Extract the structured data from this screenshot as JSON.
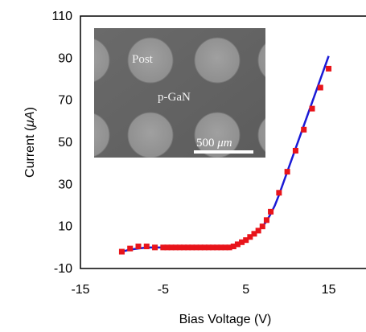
{
  "chart_data": {
    "type": "scatter",
    "xlabel": "Bias Voltage (V)",
    "ylabel": "Current (μA)",
    "ylabel_parts": {
      "prefix": "Current (",
      "mu": "μ",
      "unit": "A",
      "suffix": ")"
    },
    "xlim": [
      -15,
      20
    ],
    "ylim": [
      -10,
      110
    ],
    "x_ticks": [
      "-15",
      "-5",
      "5",
      "15"
    ],
    "x_tick_values": [
      -15,
      -5,
      5,
      15
    ],
    "y_ticks": [
      "110",
      "90",
      "70",
      "50",
      "30",
      "10",
      "-10"
    ],
    "y_tick_values": [
      110,
      90,
      70,
      50,
      30,
      10,
      -10
    ],
    "grid": false,
    "series": [
      {
        "marker": "square",
        "color": "#e8141a",
        "x": [
          -10,
          -9,
          -8,
          -7,
          -6,
          -5,
          -4.5,
          -4,
          -3.5,
          -3,
          -2.5,
          -2,
          -1.5,
          -1,
          -0.5,
          0,
          0.5,
          1,
          1.5,
          2,
          2.5,
          3,
          3.5,
          4,
          4.5,
          5,
          5.5,
          6,
          6.5,
          7,
          7.5,
          8,
          9,
          10,
          11,
          12,
          13,
          14,
          15
        ],
        "y": [
          -2,
          -0.5,
          0.5,
          0.5,
          0,
          0,
          0,
          0,
          0,
          0,
          0,
          0,
          0,
          0,
          0,
          0,
          0,
          0,
          0,
          0,
          0,
          0,
          0.5,
          1.5,
          2.5,
          3.5,
          5,
          6.5,
          8,
          10,
          13,
          17,
          26,
          36,
          46,
          56,
          66,
          76,
          85
        ]
      },
      {
        "type": "line",
        "color": "#1a1ad6",
        "x": [
          -10,
          -9,
          -8,
          -7,
          -6,
          -5,
          -4,
          -3,
          -2,
          -1,
          0,
          1,
          2,
          3,
          3.5,
          4,
          4.5,
          5,
          5.5,
          6,
          6.5,
          7,
          7.5,
          8,
          8.5,
          9,
          10,
          11,
          12,
          13,
          14,
          15
        ],
        "y": [
          -2,
          -1,
          -0.5,
          0,
          0,
          0,
          0,
          0,
          0,
          0,
          0,
          0,
          0,
          0,
          0.5,
          1.5,
          2.5,
          3.5,
          4.8,
          6.2,
          8,
          10,
          12.5,
          16,
          20,
          25,
          36,
          47,
          58,
          69,
          80,
          91
        ]
      }
    ],
    "inset": {
      "labels": {
        "post": "Post",
        "material": "p-GaN"
      },
      "scale_bar": {
        "number": "500 ",
        "unit": "μm"
      }
    }
  }
}
